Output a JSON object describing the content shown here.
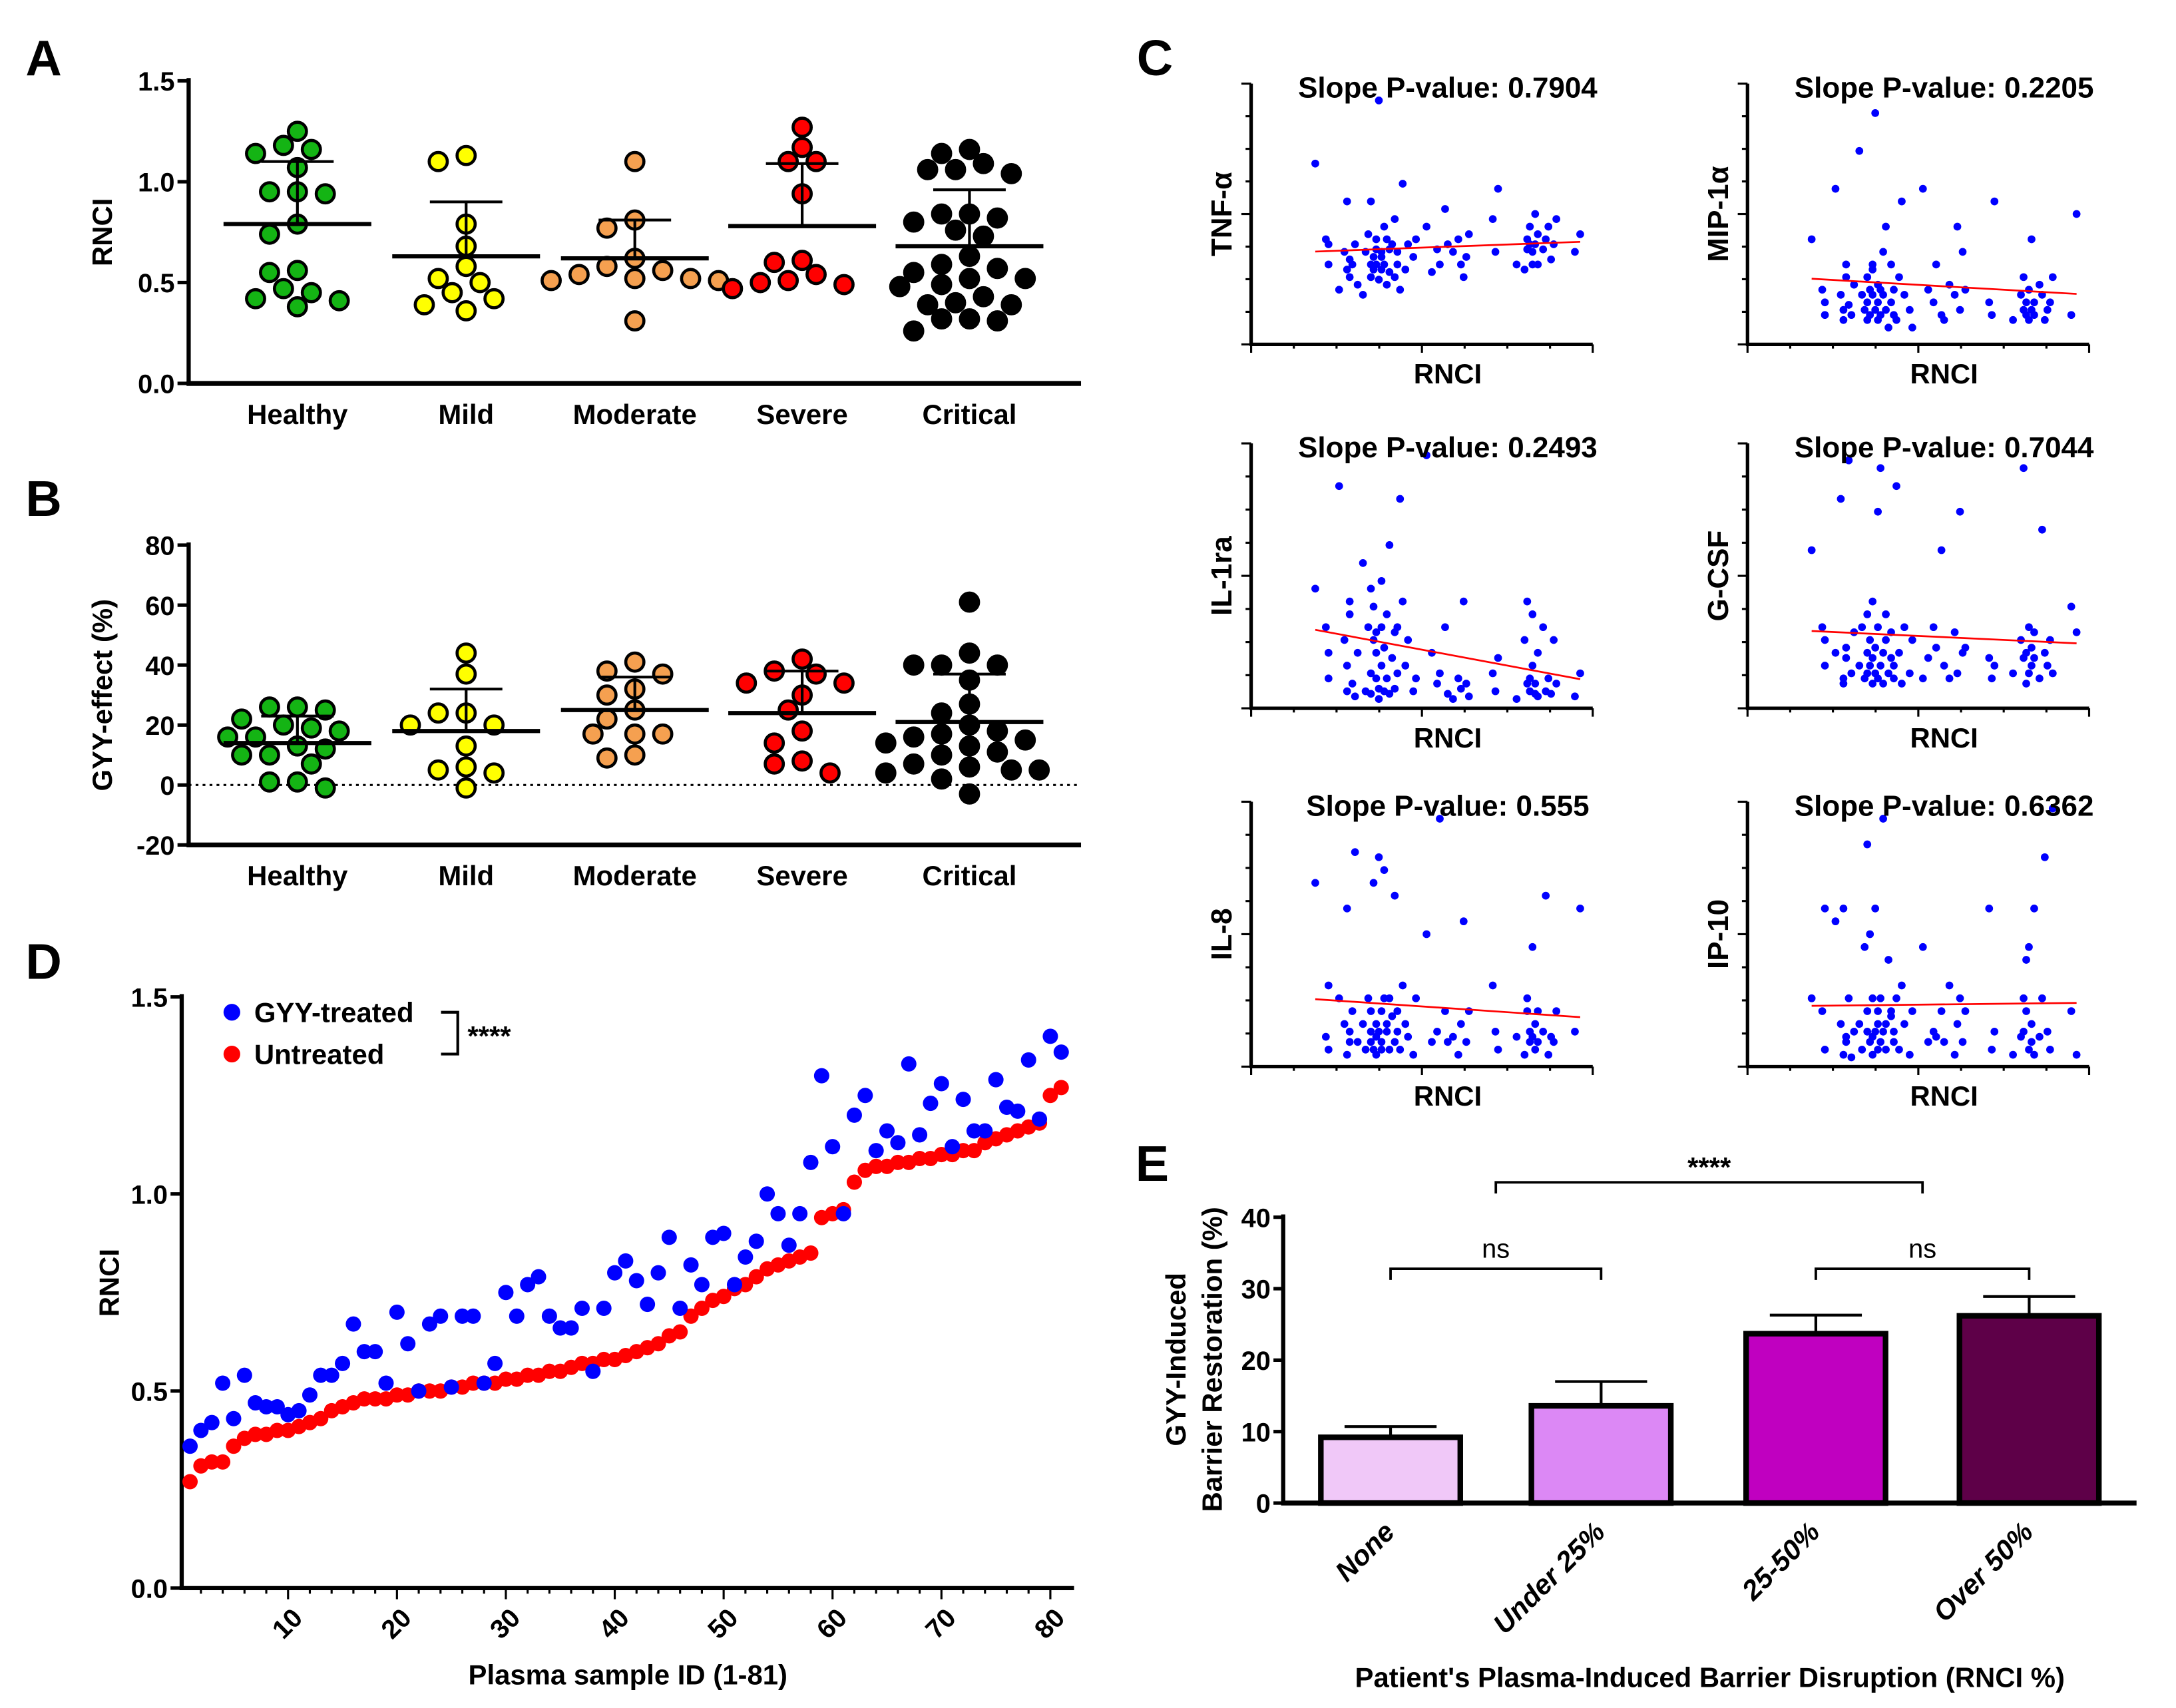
{
  "panel_letters": {
    "a": "A",
    "b": "B",
    "c": "C",
    "d": "D",
    "e": "E"
  },
  "colors": {
    "Healthy": "#14b414",
    "Mild": "#ffff00",
    "Moderate": "#f5a050",
    "Severe": "#ff0000",
    "Critical": "#000000",
    "treated": "#0000ff",
    "untreated": "#ff0000",
    "trend": "#ff0000"
  },
  "chart_data": [
    {
      "id": "A",
      "type": "scatter",
      "subtype": "dot-plot-mean-sd",
      "ylabel": "RNCI",
      "ylim": [
        0,
        1.5
      ],
      "yticks": [
        "0.0",
        "0.5",
        "1.0",
        "1.5"
      ],
      "categories": [
        "Healthy",
        "Mild",
        "Moderate",
        "Severe",
        "Critical"
      ],
      "groups": [
        {
          "name": "Healthy",
          "mean": 0.79,
          "sd_upper": 1.1,
          "values": [
            1.25,
            1.18,
            1.16,
            1.14,
            1.07,
            0.95,
            0.95,
            0.94,
            0.79,
            0.74,
            0.56,
            0.55,
            0.47,
            0.45,
            0.42,
            0.41,
            0.38
          ]
        },
        {
          "name": "Mild",
          "mean": 0.63,
          "sd_upper": 0.9,
          "values": [
            1.13,
            1.1,
            0.79,
            0.68,
            0.58,
            0.52,
            0.5,
            0.45,
            0.42,
            0.39,
            0.36
          ]
        },
        {
          "name": "Moderate",
          "mean": 0.62,
          "sd_upper": 0.81,
          "values": [
            1.1,
            0.81,
            0.77,
            0.62,
            0.58,
            0.56,
            0.54,
            0.52,
            0.52,
            0.51,
            0.51,
            0.31
          ]
        },
        {
          "name": "Severe",
          "mean": 0.78,
          "sd_upper": 1.09,
          "values": [
            1.27,
            1.17,
            1.1,
            1.1,
            0.94,
            0.61,
            0.6,
            0.54,
            0.51,
            0.5,
            0.49,
            0.47
          ]
        },
        {
          "name": "Critical",
          "mean": 0.68,
          "sd_upper": 0.96,
          "values": [
            1.16,
            1.14,
            1.09,
            1.06,
            1.06,
            1.04,
            0.84,
            0.84,
            0.82,
            0.8,
            0.76,
            0.73,
            0.63,
            0.59,
            0.57,
            0.55,
            0.52,
            0.52,
            0.49,
            0.48,
            0.43,
            0.4,
            0.39,
            0.39,
            0.32,
            0.32,
            0.31,
            0.26
          ]
        }
      ]
    },
    {
      "id": "B",
      "type": "scatter",
      "subtype": "dot-plot-mean-sd",
      "ylabel": "GYY-effect (%)",
      "ylim": [
        -20,
        80
      ],
      "yticks": [
        "-20",
        "0",
        "20",
        "40",
        "60",
        "80"
      ],
      "reference_line": 0,
      "categories": [
        "Healthy",
        "Mild",
        "Moderate",
        "Severe",
        "Critical"
      ],
      "groups": [
        {
          "name": "Healthy",
          "mean": 14,
          "sd_upper": 23,
          "values": [
            26,
            26,
            25,
            22,
            20,
            19,
            18,
            16,
            16,
            13,
            12,
            10,
            10,
            7,
            1,
            1,
            -1
          ]
        },
        {
          "name": "Mild",
          "mean": 18,
          "sd_upper": 32,
          "values": [
            44,
            37,
            24,
            24,
            20,
            20,
            13,
            6,
            5,
            4,
            -1
          ]
        },
        {
          "name": "Moderate",
          "mean": 25,
          "sd_upper": 36,
          "values": [
            41,
            38,
            37,
            32,
            30,
            25,
            22,
            17,
            17,
            17,
            10,
            9
          ]
        },
        {
          "name": "Severe",
          "mean": 24,
          "sd_upper": 38,
          "values": [
            42,
            38,
            37,
            34,
            34,
            30,
            25,
            18,
            14,
            8,
            7,
            4
          ]
        },
        {
          "name": "Critical",
          "mean": 21,
          "sd_upper": 37,
          "values": [
            61,
            44,
            40,
            40,
            40,
            35,
            27,
            24,
            20,
            18,
            17,
            16,
            15,
            14,
            13,
            11,
            10,
            7,
            6,
            5,
            5,
            4,
            2,
            -3
          ]
        }
      ]
    },
    {
      "id": "C",
      "type": "scatter",
      "subtype": "regression-grid",
      "xlabel": "RNCI",
      "panels": [
        {
          "ylabel": "TNF-α",
          "title": "Slope P-value: 0.7904",
          "y": [
            70,
            40,
            38,
            30,
            20,
            35,
            55,
            28,
            25,
            32,
            30,
            38,
            22,
            18,
            35,
            42,
            30,
            25,
            55,
            33,
            28,
            40,
            36,
            30,
            24,
            95,
            28,
            35,
            33,
            45,
            30,
            22,
            40,
            36,
            27,
            38,
            25,
            48,
            35,
            30,
            20,
            62,
            28,
            38,
            33,
            40,
            45,
            27,
            36,
            30,
            52,
            38,
            35,
            40,
            30,
            25,
            33,
            42,
            48,
            35,
            60,
            30,
            28,
            36,
            40,
            38,
            45,
            30,
            35,
            50,
            38,
            42,
            30,
            36,
            40,
            45,
            32,
            38,
            48,
            35,
            42
          ]
        },
        {
          "ylabel": "MIP-1α",
          "title": "Slope P-value: 0.2205",
          "y": [
            40,
            20,
            15,
            10,
            60,
            18,
            12,
            8,
            25,
            30,
            14,
            10,
            22,
            75,
            18,
            12,
            8,
            25,
            15,
            20,
            10,
            30,
            28,
            18,
            12,
            90,
            22,
            15,
            8,
            10,
            20,
            35,
            18,
            12,
            45,
            5,
            30,
            15,
            20,
            10,
            8,
            25,
            55,
            18,
            12,
            5,
            60,
            20,
            15,
            30,
            10,
            8,
            22,
            18,
            45,
            12,
            35,
            20,
            15,
            10,
            55,
            8,
            18,
            12,
            25,
            10,
            15,
            8,
            20,
            12,
            40,
            15,
            10,
            22,
            18,
            8,
            12,
            15,
            25,
            10,
            50
          ]
        },
        {
          "ylabel": "IL-1ra",
          "title": "Slope P-value: 0.2493",
          "y": [
            45,
            30,
            20,
            10,
            85,
            25,
            5,
            15,
            35,
            40,
            8,
            3,
            20,
            55,
            5,
            30,
            45,
            12,
            4,
            25,
            38,
            10,
            20,
            28,
            6,
            2,
            30,
            15,
            48,
            5,
            22,
            35,
            10,
            62,
            4,
            18,
            28,
            6,
            30,
            12,
            80,
            40,
            15,
            25,
            5,
            10,
            97,
            20,
            8,
            12,
            30,
            4,
            2,
            10,
            6,
            40,
            8,
            3,
            12,
            5,
            18,
            2,
            25,
            8,
            40,
            10,
            5,
            35,
            15,
            4,
            8,
            3,
            20,
            30,
            5,
            10,
            4,
            25,
            8,
            3,
            12
          ]
        },
        {
          "ylabel": "G-CSF",
          "title": "Slope P-value: 0.7044",
          "y": [
            60,
            30,
            15,
            25,
            20,
            80,
            10,
            8,
            18,
            22,
            95,
            12,
            28,
            15,
            30,
            10,
            20,
            35,
            12,
            25,
            15,
            8,
            40,
            18,
            22,
            12,
            30,
            75,
            10,
            92,
            15,
            20,
            8,
            25,
            35,
            12,
            18,
            28,
            10,
            15,
            85,
            20,
            8,
            30,
            12,
            25,
            10,
            18,
            30,
            22,
            60,
            15,
            10,
            28,
            12,
            75,
            20,
            22,
            18,
            10,
            15,
            12,
            25,
            18,
            92,
            8,
            20,
            30,
            12,
            15,
            22,
            18,
            28,
            10,
            68,
            20,
            15,
            25,
            12,
            38,
            28
          ]
        },
        {
          "ylabel": "IL-8",
          "title": "Slope P-value: 0.555",
          "y": [
            70,
            10,
            5,
            30,
            25,
            15,
            3,
            60,
            8,
            12,
            20,
            82,
            8,
            15,
            5,
            25,
            12,
            8,
            20,
            70,
            5,
            15,
            10,
            3,
            80,
            12,
            20,
            8,
            5,
            25,
            75,
            12,
            15,
            5,
            25,
            18,
            65,
            8,
            12,
            20,
            5,
            30,
            15,
            10,
            3,
            25,
            50,
            8,
            12,
            95,
            20,
            8,
            10,
            3,
            15,
            55,
            8,
            20,
            30,
            12,
            5,
            10,
            3,
            25,
            20,
            8,
            12,
            45,
            10,
            15,
            5,
            8,
            20,
            12,
            65,
            3,
            10,
            8,
            20,
            12,
            60
          ]
        },
        {
          "ylabel": "IP-10",
          "title": "Slope P-value: 0.6362",
          "y": [
            25,
            20,
            5,
            60,
            55,
            15,
            3,
            60,
            10,
            8,
            25,
            2,
            12,
            15,
            5,
            45,
            12,
            85,
            20,
            8,
            50,
            10,
            25,
            3,
            60,
            12,
            15,
            20,
            5,
            25,
            8,
            95,
            12,
            15,
            5,
            40,
            18,
            20,
            8,
            12,
            25,
            5,
            30,
            15,
            3,
            20,
            45,
            8,
            12,
            10,
            20,
            8,
            30,
            3,
            15,
            25,
            8,
            20,
            60,
            5,
            12,
            3,
            10,
            25,
            12,
            40,
            20,
            5,
            45,
            15,
            8,
            60,
            3,
            10,
            25,
            80,
            12,
            5,
            99,
            20,
            3
          ]
        }
      ]
    },
    {
      "id": "D",
      "type": "scatter",
      "xlabel": "Plasma sample ID (1-81)",
      "ylabel": "RNCI",
      "xlim": [
        1,
        81
      ],
      "ylim": [
        0,
        1.5
      ],
      "xticks": [
        "10",
        "20",
        "30",
        "40",
        "50",
        "60",
        "70",
        "80"
      ],
      "yticks": [
        "0.0",
        "0.5",
        "1.0",
        "1.5"
      ],
      "legend_position": "top-left",
      "significance": "****",
      "series": [
        {
          "name": "GYY-treated",
          "values": [
            0.36,
            0.4,
            0.42,
            0.52,
            0.43,
            0.54,
            0.47,
            0.46,
            0.46,
            0.44,
            0.45,
            0.49,
            0.54,
            0.54,
            0.57,
            0.67,
            0.6,
            0.6,
            0.52,
            0.7,
            0.62,
            0.5,
            0.67,
            0.69,
            0.51,
            0.69,
            0.69,
            0.52,
            0.57,
            0.75,
            0.69,
            0.77,
            0.79,
            0.69,
            0.66,
            0.66,
            0.71,
            0.55,
            0.71,
            0.8,
            0.83,
            0.78,
            0.72,
            0.8,
            0.89,
            0.71,
            0.82,
            0.77,
            0.89,
            0.9,
            0.77,
            0.84,
            0.88,
            1.0,
            0.95,
            0.87,
            0.95,
            1.08,
            1.3,
            1.12,
            0.95,
            1.2,
            1.25,
            1.11,
            1.16,
            1.13,
            1.33,
            1.15,
            1.23,
            1.28,
            1.12,
            1.24,
            1.16,
            1.16,
            1.29,
            1.22,
            1.21,
            1.34,
            1.19,
            1.4,
            1.36
          ]
        },
        {
          "name": "Untreated",
          "values": [
            0.27,
            0.31,
            0.32,
            0.32,
            0.36,
            0.38,
            0.39,
            0.39,
            0.4,
            0.4,
            0.41,
            0.42,
            0.43,
            0.45,
            0.46,
            0.47,
            0.48,
            0.48,
            0.48,
            0.49,
            0.49,
            0.5,
            0.5,
            0.5,
            0.51,
            0.51,
            0.52,
            0.52,
            0.52,
            0.53,
            0.53,
            0.54,
            0.54,
            0.55,
            0.55,
            0.56,
            0.57,
            0.57,
            0.58,
            0.58,
            0.59,
            0.6,
            0.61,
            0.62,
            0.64,
            0.65,
            0.69,
            0.71,
            0.73,
            0.74,
            0.76,
            0.77,
            0.79,
            0.81,
            0.82,
            0.83,
            0.84,
            0.85,
            0.94,
            0.95,
            0.96,
            1.03,
            1.06,
            1.07,
            1.07,
            1.08,
            1.08,
            1.09,
            1.09,
            1.1,
            1.1,
            1.11,
            1.11,
            1.13,
            1.14,
            1.15,
            1.16,
            1.17,
            1.18,
            1.25,
            1.27
          ]
        }
      ]
    },
    {
      "id": "E",
      "type": "bar",
      "xlabel": "Patient's Plasma-Induced Barrier Disruption (RNCI %)",
      "ylabel_lines": [
        "GYY-Induced",
        "Barrier Restoration (%)"
      ],
      "ylim": [
        0,
        40
      ],
      "yticks": [
        "0",
        "10",
        "20",
        "30",
        "40"
      ],
      "categories": [
        "None",
        "Under 25%",
        "25-50%",
        "Over 50%"
      ],
      "values": [
        9.2,
        13.6,
        23.7,
        26.2
      ],
      "error_upper": [
        10.7,
        17.0,
        26.3,
        28.9
      ],
      "bar_colors": [
        "#f0c8f8",
        "#dc88f5",
        "#c000c0",
        "#5e0048"
      ],
      "comparisons": [
        {
          "from": 0,
          "to": 1,
          "label": "ns",
          "level": 33
        },
        {
          "from": 2,
          "to": 3,
          "label": "ns",
          "level": 33
        },
        {
          "from": 0.5,
          "to": 2.5,
          "label": "****",
          "level": 40
        }
      ]
    }
  ]
}
